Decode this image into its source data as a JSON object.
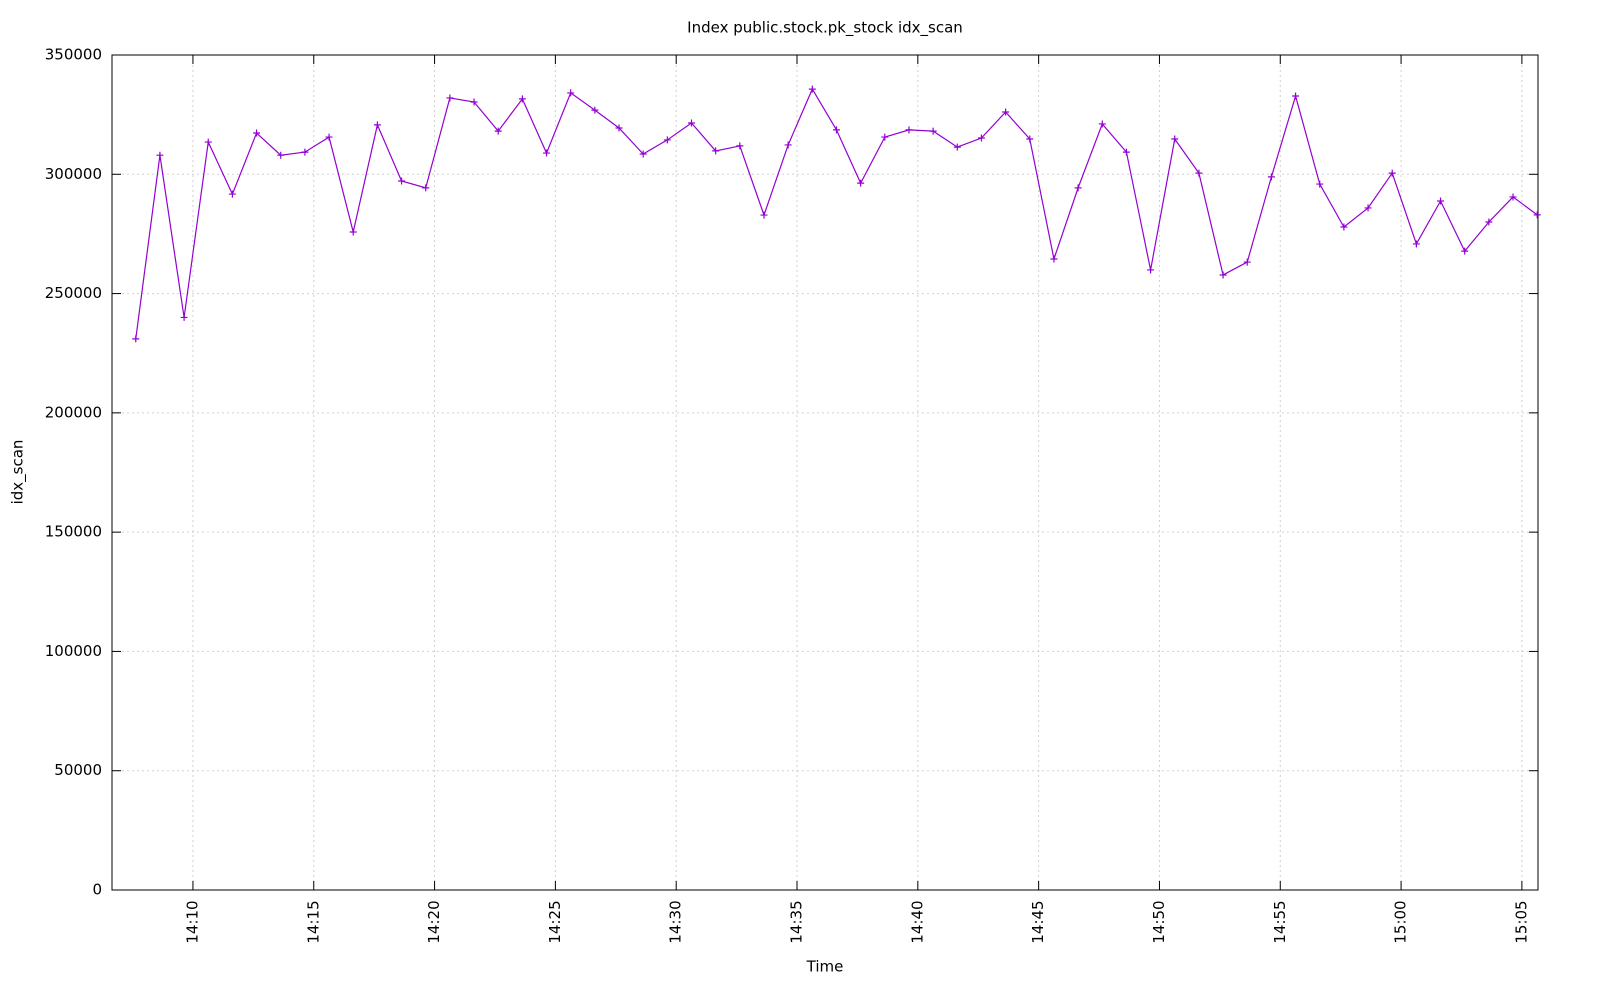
{
  "chart_data": {
    "type": "line",
    "title": "Index public.stock.pk_stock idx_scan",
    "x_label": "Time",
    "y_label": "idx_scan",
    "color": "#9400d3",
    "grid": true,
    "x": [
      "14:07:38",
      "14:08:38",
      "14:09:38",
      "14:10:38",
      "14:11:38",
      "14:12:38",
      "14:13:38",
      "14:14:38",
      "14:15:38",
      "14:16:38",
      "14:17:38",
      "14:18:38",
      "14:19:38",
      "14:20:38",
      "14:21:38",
      "14:22:38",
      "14:23:38",
      "14:24:38",
      "14:25:38",
      "14:26:38",
      "14:27:38",
      "14:28:38",
      "14:29:38",
      "14:30:38",
      "14:31:38",
      "14:32:38",
      "14:33:38",
      "14:34:38",
      "14:35:38",
      "14:36:38",
      "14:37:38",
      "14:38:38",
      "14:39:38",
      "14:40:38",
      "14:41:38",
      "14:42:38",
      "14:43:38",
      "14:44:38",
      "14:45:38",
      "14:46:38",
      "14:47:38",
      "14:48:38",
      "14:49:38",
      "14:50:38",
      "14:51:38",
      "14:52:38",
      "14:53:38",
      "14:54:38",
      "14:55:38",
      "14:56:38",
      "14:57:38",
      "14:58:38",
      "14:59:38",
      "15:00:38",
      "15:01:38",
      "15:02:38",
      "15:03:38",
      "15:04:38",
      "15:05:38"
    ],
    "values": [
      231000,
      308000,
      240000,
      313500,
      291700,
      317300,
      308000,
      309300,
      315600,
      275800,
      320700,
      297200,
      294300,
      332000,
      330300,
      318100,
      331600,
      308900,
      334100,
      326900,
      319400,
      308500,
      314400,
      321500,
      309800,
      311900,
      282900,
      312300,
      335700,
      318600,
      296300,
      315600,
      318600,
      318100,
      311400,
      315200,
      326100,
      314800,
      264500,
      294300,
      321100,
      309300,
      259900,
      314800,
      300500,
      257800,
      263200,
      298900,
      332800,
      295900,
      277900,
      285900,
      300500,
      270800,
      288800,
      267800,
      280000,
      290500,
      283000
    ],
    "xlim": [
      "14:06:39",
      "15:05:40"
    ],
    "xticks": [
      "14:10",
      "14:15",
      "14:20",
      "14:25",
      "14:30",
      "14:35",
      "14:40",
      "14:45",
      "14:50",
      "14:55",
      "15:00",
      "15:05"
    ],
    "ylim": [
      0,
      350000
    ],
    "yticks": [
      0,
      50000,
      100000,
      150000,
      200000,
      250000,
      300000,
      350000
    ]
  }
}
